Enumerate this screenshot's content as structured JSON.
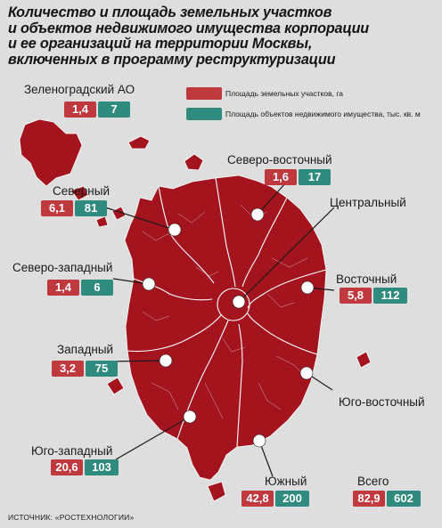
{
  "title_lines": [
    "Количество и площадь земельных участков",
    "и объектов недвижимого имущества корпорации",
    "и ее организаций на территории Москвы,",
    "включенных в программу реструктуризации"
  ],
  "legend": {
    "land_label": "Площадь земельных участков, га",
    "property_label": "Площадь объектов недвижимого имущества, тыс. кв. м"
  },
  "colors": {
    "land": "#c0393e",
    "property": "#2e8b7e",
    "map_fill": "#a3141e",
    "map_stroke": "#ffffff"
  },
  "districts": {
    "zelenograd": {
      "name": "Зеленоградский АО",
      "land": "1,4",
      "property": "7"
    },
    "north_east": {
      "name": "Северо-восточный",
      "land": "1,6",
      "property": "17"
    },
    "north": {
      "name": "Северный",
      "land": "6,1",
      "property": "81"
    },
    "central": {
      "name": "Центральный"
    },
    "north_west": {
      "name": "Северо-западный",
      "land": "1,4",
      "property": "6"
    },
    "east": {
      "name": "Восточный",
      "land": "5,8",
      "property": "112"
    },
    "west": {
      "name": "Западный",
      "land": "3,2",
      "property": "75"
    },
    "south_east": {
      "name": "Юго-восточный"
    },
    "south_west": {
      "name": "Юго-западный",
      "land": "20,6",
      "property": "103"
    },
    "south": {
      "name": "Южный",
      "land": "42,8",
      "property": "200"
    },
    "total": {
      "name": "Всего",
      "land": "82,9",
      "property": "602"
    }
  },
  "source": "ИСТОЧНИК: «РОСТЕХНОЛОГИИ»"
}
